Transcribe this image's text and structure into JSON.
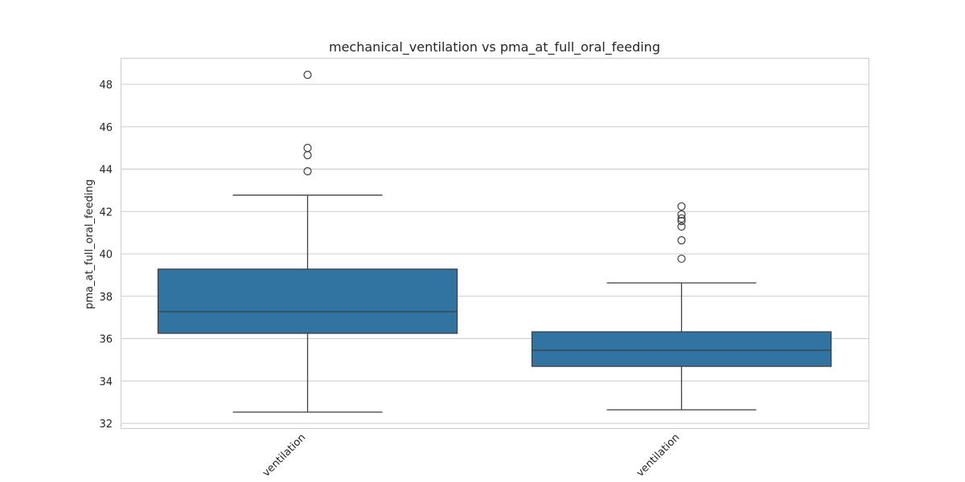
{
  "chart_data": {
    "type": "box",
    "title": "mechanical_ventilation vs pma_at_full_oral_feeding",
    "xlabel": "",
    "ylabel": "pma_at_full_oral_feeding",
    "ylim": [
      31.75,
      49.2
    ],
    "yticks": [
      32,
      34,
      36,
      38,
      40,
      42,
      44,
      46,
      48
    ],
    "grid": true,
    "color": "#3274a1",
    "categories": [
      "ventilation",
      "ventilation"
    ],
    "boxes": [
      {
        "whisker_low": 32.53,
        "q1": 36.25,
        "median": 37.27,
        "q3": 39.28,
        "whisker_high": 42.77,
        "outliers": [
          43.9,
          44.66,
          45.0,
          48.45
        ]
      },
      {
        "whisker_low": 32.64,
        "q1": 34.69,
        "median": 35.45,
        "q3": 36.32,
        "whisker_high": 38.63,
        "outliers": [
          39.77,
          40.64,
          41.29,
          41.55,
          41.67,
          41.86,
          42.24
        ]
      }
    ]
  }
}
